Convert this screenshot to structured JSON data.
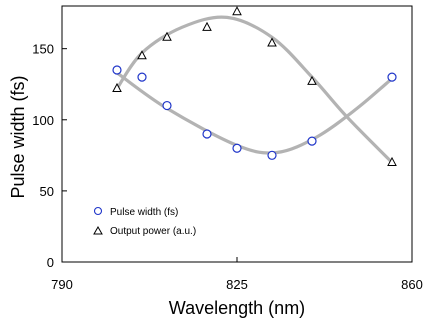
{
  "chart_data": {
    "type": "scatter",
    "title": "",
    "xlabel": "Wavelength (nm)",
    "ylabel": "Pulse width (fs)",
    "xlim": [
      790,
      860
    ],
    "ylim": [
      0,
      180
    ],
    "xticks": [
      790,
      825,
      860
    ],
    "yticks": [
      0,
      50,
      100,
      150
    ],
    "grid": false,
    "legend_position": "bottom-left",
    "series": [
      {
        "name": "Pulse width (fs)",
        "marker": "circle",
        "color": "#1f35c9",
        "x": [
          801,
          806,
          811,
          819,
          825,
          832,
          840,
          856
        ],
        "y": [
          135,
          130,
          110,
          90,
          80,
          75,
          85,
          130
        ]
      },
      {
        "name": "Output power (a.u.)",
        "marker": "triangle",
        "color": "#000000",
        "x": [
          801,
          806,
          811,
          819,
          825,
          832,
          840,
          856
        ],
        "y": [
          122,
          145,
          158,
          165,
          176,
          154,
          127,
          70
        ]
      }
    ],
    "fit_curves": {
      "color": "#b3b3b3",
      "curves": [
        {
          "x": [
            801,
            811,
            825,
            833,
            841,
            849,
            856
          ],
          "y": [
            133,
            108,
            82,
            77,
            88,
            108,
            129
          ]
        },
        {
          "x": [
            801,
            806,
            814,
            823,
            832,
            840,
            847,
            856
          ],
          "y": [
            122,
            147,
            165,
            172,
            158,
            130,
            102,
            70
          ]
        }
      ]
    }
  }
}
